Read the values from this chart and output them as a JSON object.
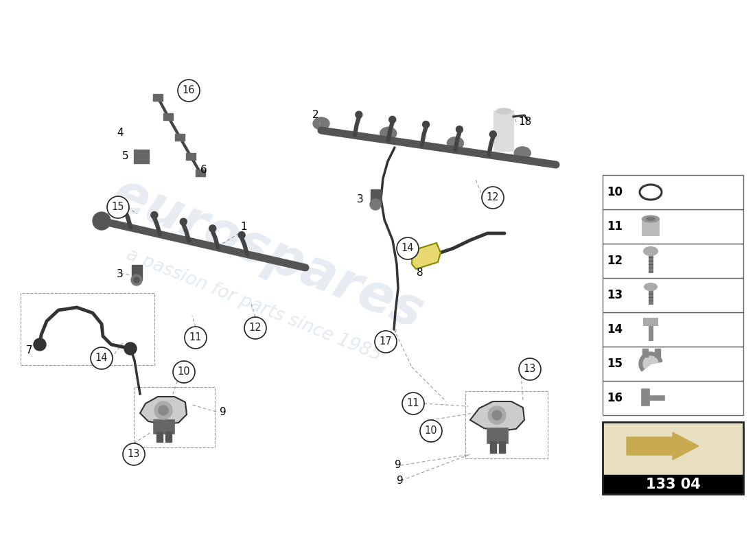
{
  "bg_color": "#ffffff",
  "watermark1": "eurospares",
  "watermark2": "a passion for parts since 1985",
  "part_number": "133 04",
  "legend_nums": [
    16,
    15,
    14,
    13,
    12,
    11,
    10
  ],
  "callout_color": "#222222",
  "line_color": "#333333",
  "dash_color": "#999999",
  "rail_color": "#555555",
  "pump_color": "#cccccc",
  "badge_bg": "#e8dfc0",
  "badge_arrow": "#c8aa50",
  "badge_text_bg": "#000000",
  "badge_text_color": "#ffffff",
  "yellow_pipe": "#e8d870",
  "yellow_pipe_edge": "#888800"
}
